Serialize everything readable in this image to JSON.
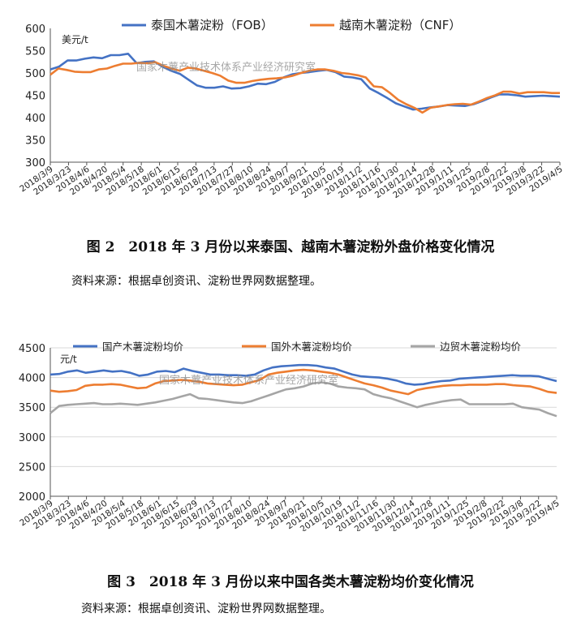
{
  "figures": [
    {
      "caption": "图 2　2018 年 3 月份以来泰国、越南木薯淀粉外盘价格变化情况",
      "source": "资料来源：根据卓创资讯、淀粉世界网数据整理。",
      "watermark": "国家木薯产业技术体系产业经济研究室"
    },
    {
      "caption": "图 3　2018 年 3 月份以来中国各类木薯淀粉均价变化情况",
      "source": "资料来源：根据卓创资讯、淀粉世界网数据整理。",
      "watermark": "国家木薯产业技术体系产业经济研究室"
    }
  ],
  "chart_data": [
    {
      "type": "line",
      "title": "",
      "ylabel": "美元/t",
      "ylim": [
        300,
        600
      ],
      "yticks": [
        300,
        350,
        400,
        450,
        500,
        550,
        600
      ],
      "grid": false,
      "legend": "top-center",
      "x_tick_labels": [
        "2018/3/9",
        "2018/3/23",
        "2018/4/6",
        "2018/4/20",
        "2018/5/4",
        "2018/5/18",
        "2018/6/1",
        "2018/6/15",
        "2018/6/29",
        "2018/7/13",
        "2018/7/27",
        "2018/8/10",
        "2018/8/24",
        "2018/9/7",
        "2018/9/21",
        "2018/10/5",
        "2018/10/19",
        "2018/11/2",
        "2018/11/16",
        "2018/11/30",
        "2018/12/14",
        "2018/12/28",
        "2019/1/11",
        "2019/1/25",
        "2019/2/8",
        "2019/2/22",
        "2019/3/8",
        "2019/3/22",
        "2019/4/5"
      ],
      "series": [
        {
          "name": "泰国木薯淀粉（FOB）",
          "color": "#4472C4",
          "values": [
            508,
            514,
            528,
            528,
            532,
            535,
            533,
            540,
            540,
            543,
            522,
            525,
            526,
            514,
            505,
            498,
            485,
            472,
            467,
            467,
            470,
            465,
            466,
            470,
            476,
            475,
            480,
            490,
            497,
            500,
            502,
            505,
            507,
            502,
            492,
            490,
            486,
            465,
            455,
            444,
            432,
            425,
            418,
            420,
            423,
            425,
            428,
            427,
            426,
            430,
            437,
            445,
            452,
            452,
            450,
            447,
            448,
            449,
            448,
            447
          ]
        },
        {
          "name": "越南木薯淀粉（CNF）",
          "color": "#ED7D31",
          "values": [
            496,
            510,
            507,
            503,
            502,
            502,
            508,
            510,
            516,
            521,
            521,
            523,
            522,
            524,
            516,
            510,
            505,
            512,
            510,
            505,
            500,
            494,
            483,
            478,
            478,
            482,
            485,
            487,
            488,
            490,
            494,
            500,
            505,
            508,
            508,
            505,
            500,
            498,
            495,
            490,
            470,
            468,
            455,
            440,
            430,
            422,
            411,
            422,
            425,
            428,
            430,
            431,
            429,
            436,
            444,
            450,
            458,
            458,
            454,
            457,
            457,
            457,
            455,
            455
          ]
        }
      ]
    },
    {
      "type": "line",
      "title": "",
      "ylabel": "元/t",
      "ylim": [
        2000,
        4500
      ],
      "yticks": [
        2000,
        2500,
        3000,
        3500,
        4000,
        4500
      ],
      "grid": true,
      "legend": "top",
      "x_tick_labels": [
        "2018/3/9",
        "2018/3/23",
        "2018/4/6",
        "2018/4/20",
        "2018/5/4",
        "2018/5/18",
        "2018/6/1",
        "2018/6/15",
        "2018/6/29",
        "2018/7/13",
        "2018/7/27",
        "2018/8/10",
        "2018/8/24",
        "2018/9/7",
        "2018/9/21",
        "2018/10/5",
        "2018/10/19",
        "2018/11/2",
        "2018/11/16",
        "2018/11/30",
        "2018/12/14",
        "2018/12/28",
        "2019/1/11",
        "2019/1/25",
        "2019/2/8",
        "2019/2/22",
        "2019/3/8",
        "2019/3/22",
        "2019/4/5"
      ],
      "series": [
        {
          "name": "国产木薯淀粉均价",
          "color": "#4472C4",
          "values": [
            4050,
            4060,
            4100,
            4120,
            4080,
            4100,
            4120,
            4100,
            4110,
            4080,
            4030,
            4050,
            4100,
            4110,
            4090,
            4150,
            4110,
            4080,
            4050,
            4050,
            4040,
            4040,
            4030,
            4050,
            4120,
            4170,
            4190,
            4200,
            4210,
            4210,
            4200,
            4170,
            4150,
            4100,
            4050,
            4020,
            4010,
            4000,
            3980,
            3950,
            3900,
            3880,
            3890,
            3920,
            3940,
            3950,
            3980,
            3990,
            4000,
            4010,
            4020,
            4030,
            4040,
            4030,
            4030,
            4020,
            3980,
            3940
          ]
        },
        {
          "name": "国外木薯淀粉均价",
          "color": "#ED7D31",
          "values": [
            3780,
            3760,
            3770,
            3790,
            3860,
            3880,
            3880,
            3890,
            3880,
            3850,
            3820,
            3830,
            3900,
            3940,
            3950,
            3960,
            3950,
            3930,
            3900,
            3890,
            3880,
            3870,
            3880,
            3920,
            3960,
            4050,
            4080,
            4100,
            4120,
            4130,
            4120,
            4100,
            4080,
            4050,
            4000,
            3950,
            3900,
            3870,
            3830,
            3780,
            3750,
            3720,
            3790,
            3820,
            3840,
            3860,
            3870,
            3870,
            3880,
            3880,
            3880,
            3890,
            3890,
            3870,
            3860,
            3850,
            3810,
            3760,
            3740
          ]
        },
        {
          "name": "边贸木薯淀粉均价",
          "color": "#A5A5A5",
          "values": [
            3400,
            3520,
            3540,
            3550,
            3560,
            3570,
            3550,
            3550,
            3560,
            3550,
            3540,
            3560,
            3580,
            3610,
            3640,
            3680,
            3720,
            3650,
            3640,
            3620,
            3600,
            3580,
            3570,
            3600,
            3650,
            3700,
            3750,
            3800,
            3820,
            3850,
            3900,
            3920,
            3900,
            3850,
            3830,
            3820,
            3800,
            3720,
            3680,
            3650,
            3600,
            3550,
            3500,
            3540,
            3570,
            3600,
            3620,
            3630,
            3550,
            3550,
            3550,
            3550,
            3550,
            3560,
            3500,
            3480,
            3460,
            3400,
            3350
          ]
        }
      ]
    }
  ]
}
